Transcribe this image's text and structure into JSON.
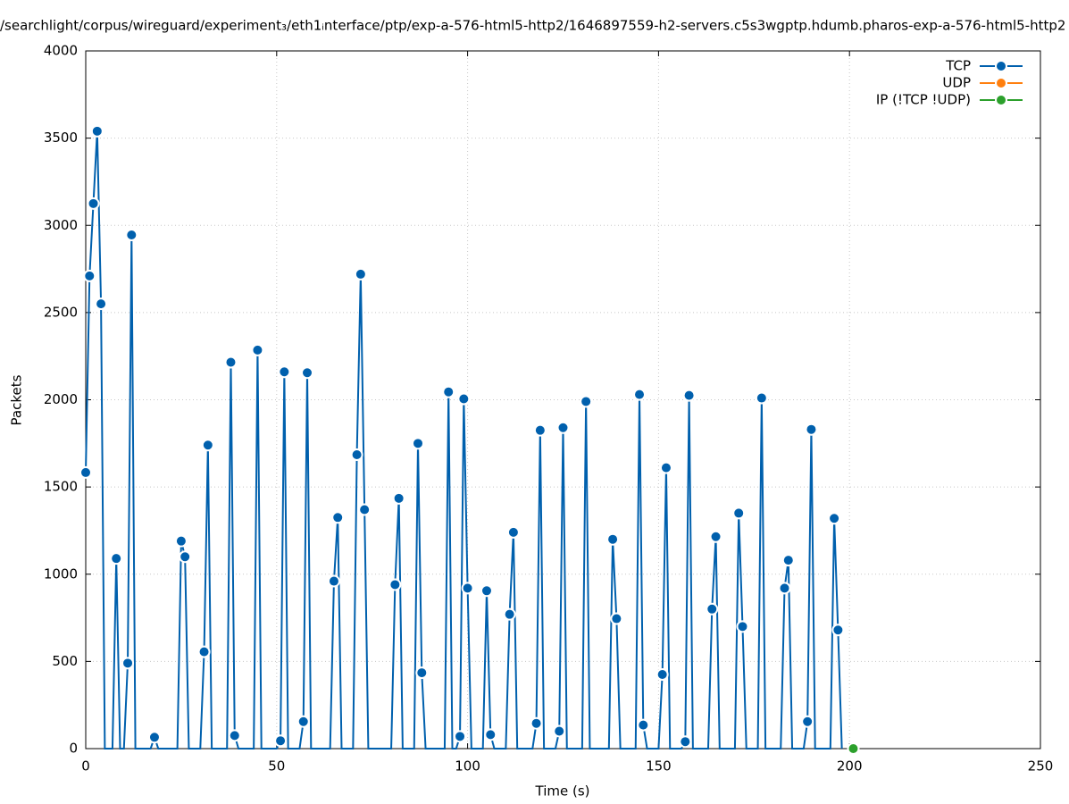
{
  "chart_data": {
    "type": "line",
    "title": "/searchlight/corpus/wireguard/experiment₃/eth1ᵢnterface/ptp/exp-a-576-html5-http2/1646897559-h2-servers.c5s3wgptp.hdumb.pharos-exp-a-576-html5-http2",
    "x_label": "Time (s)",
    "y_label": "Packets",
    "xlim": [
      0,
      250
    ],
    "xticks": [
      0,
      50,
      100,
      150,
      200,
      250
    ],
    "ylim": [
      0,
      4000
    ],
    "yticks": [
      0,
      500,
      1000,
      1500,
      2000,
      2500,
      3000,
      3500,
      4000
    ],
    "grid": true,
    "legend": "top-right",
    "series": [
      {
        "name": "TCP",
        "color": "#0060ad",
        "x": [
          0,
          1,
          2,
          3,
          4,
          5,
          7,
          8,
          9,
          10,
          11,
          12,
          13,
          17,
          18,
          19,
          24,
          25,
          26,
          27,
          30,
          31,
          32,
          33,
          37,
          38,
          39,
          40,
          44,
          45,
          46,
          50,
          51,
          52,
          53,
          56,
          57,
          58,
          59,
          64,
          65,
          66,
          67,
          70,
          71,
          72,
          73,
          74,
          80,
          81,
          82,
          83,
          86,
          87,
          88,
          89,
          94,
          95,
          96,
          97,
          98,
          99,
          100,
          101,
          104,
          105,
          106,
          107,
          110,
          111,
          112,
          113,
          117,
          118,
          119,
          120,
          123,
          124,
          125,
          126,
          130,
          131,
          132,
          137,
          138,
          139,
          140,
          144,
          145,
          146,
          147,
          150,
          151,
          152,
          153,
          156,
          157,
          158,
          159,
          163,
          164,
          165,
          166,
          170,
          171,
          172,
          173,
          176,
          177,
          178,
          182,
          183,
          184,
          185,
          188,
          189,
          190,
          191,
          195,
          196,
          197,
          198
        ],
        "values": [
          1583,
          2710,
          3125,
          3540,
          2550,
          0,
          0,
          1090,
          0,
          0,
          490,
          2945,
          0,
          0,
          65,
          0,
          0,
          1190,
          1100,
          0,
          0,
          555,
          1740,
          0,
          0,
          2215,
          75,
          0,
          0,
          2285,
          0,
          0,
          45,
          2160,
          0,
          0,
          155,
          2155,
          0,
          0,
          960,
          1325,
          0,
          0,
          1685,
          2720,
          1370,
          0,
          0,
          940,
          1435,
          0,
          0,
          1750,
          435,
          0,
          0,
          2045,
          0,
          0,
          70,
          2005,
          920,
          0,
          0,
          905,
          80,
          0,
          0,
          770,
          1240,
          0,
          0,
          145,
          1825,
          0,
          0,
          100,
          1840,
          0,
          0,
          1990,
          0,
          0,
          1200,
          745,
          0,
          0,
          2030,
          135,
          0,
          0,
          425,
          1610,
          0,
          0,
          40,
          2025,
          0,
          0,
          800,
          1215,
          0,
          0,
          1350,
          700,
          0,
          0,
          2010,
          0,
          0,
          920,
          1080,
          0,
          0,
          155,
          1830,
          0,
          0,
          1320,
          680,
          0
        ]
      },
      {
        "name": "UDP",
        "color": "#ff7f0e",
        "x": [],
        "values": []
      },
      {
        "name": "IP (!TCP  !UDP)",
        "color": "#2ca02c",
        "x": [
          201
        ],
        "values": [
          0
        ]
      }
    ]
  }
}
